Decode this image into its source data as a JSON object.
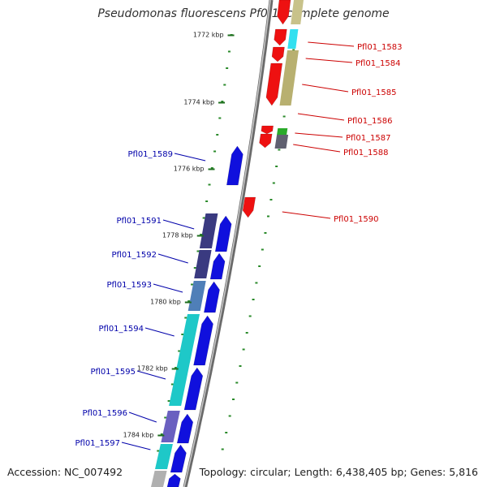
{
  "header": {
    "title": "Pseudomonas fluorescens Pf0-1, complete genome"
  },
  "footer": {
    "accession": "Accession: NC_007492",
    "summary": "Topology: circular; Length: 6,438,405 bp; Genes: 5,816"
  },
  "colors": {
    "reverse_gene": "#ee1111",
    "forward_gene": "#1010dd",
    "backbone": "#888888",
    "tick": "#2a8a2a",
    "label_red": "#cc0000",
    "label_blue": "#0000aa"
  },
  "scale": {
    "ticks": [
      {
        "label": "1772 kbp"
      },
      {
        "label": "1774 kbp"
      },
      {
        "label": "1776 kbp"
      },
      {
        "label": "1778 kbp"
      },
      {
        "label": "1780 kbp"
      },
      {
        "label": "1782 kbp"
      },
      {
        "label": "1784 kbp"
      }
    ]
  },
  "reverse_labels": [
    "Pfl01_1583",
    "Pfl01_1584",
    "Pfl01_1585",
    "Pfl01_1586",
    "Pfl01_1587",
    "Pfl01_1588",
    "Pfl01_1590"
  ],
  "forward_labels": [
    "Pfl01_1589",
    "Pfl01_1591",
    "Pfl01_1592",
    "Pfl01_1593",
    "Pfl01_1594",
    "Pfl01_1595",
    "Pfl01_1596",
    "Pfl01_1597"
  ]
}
